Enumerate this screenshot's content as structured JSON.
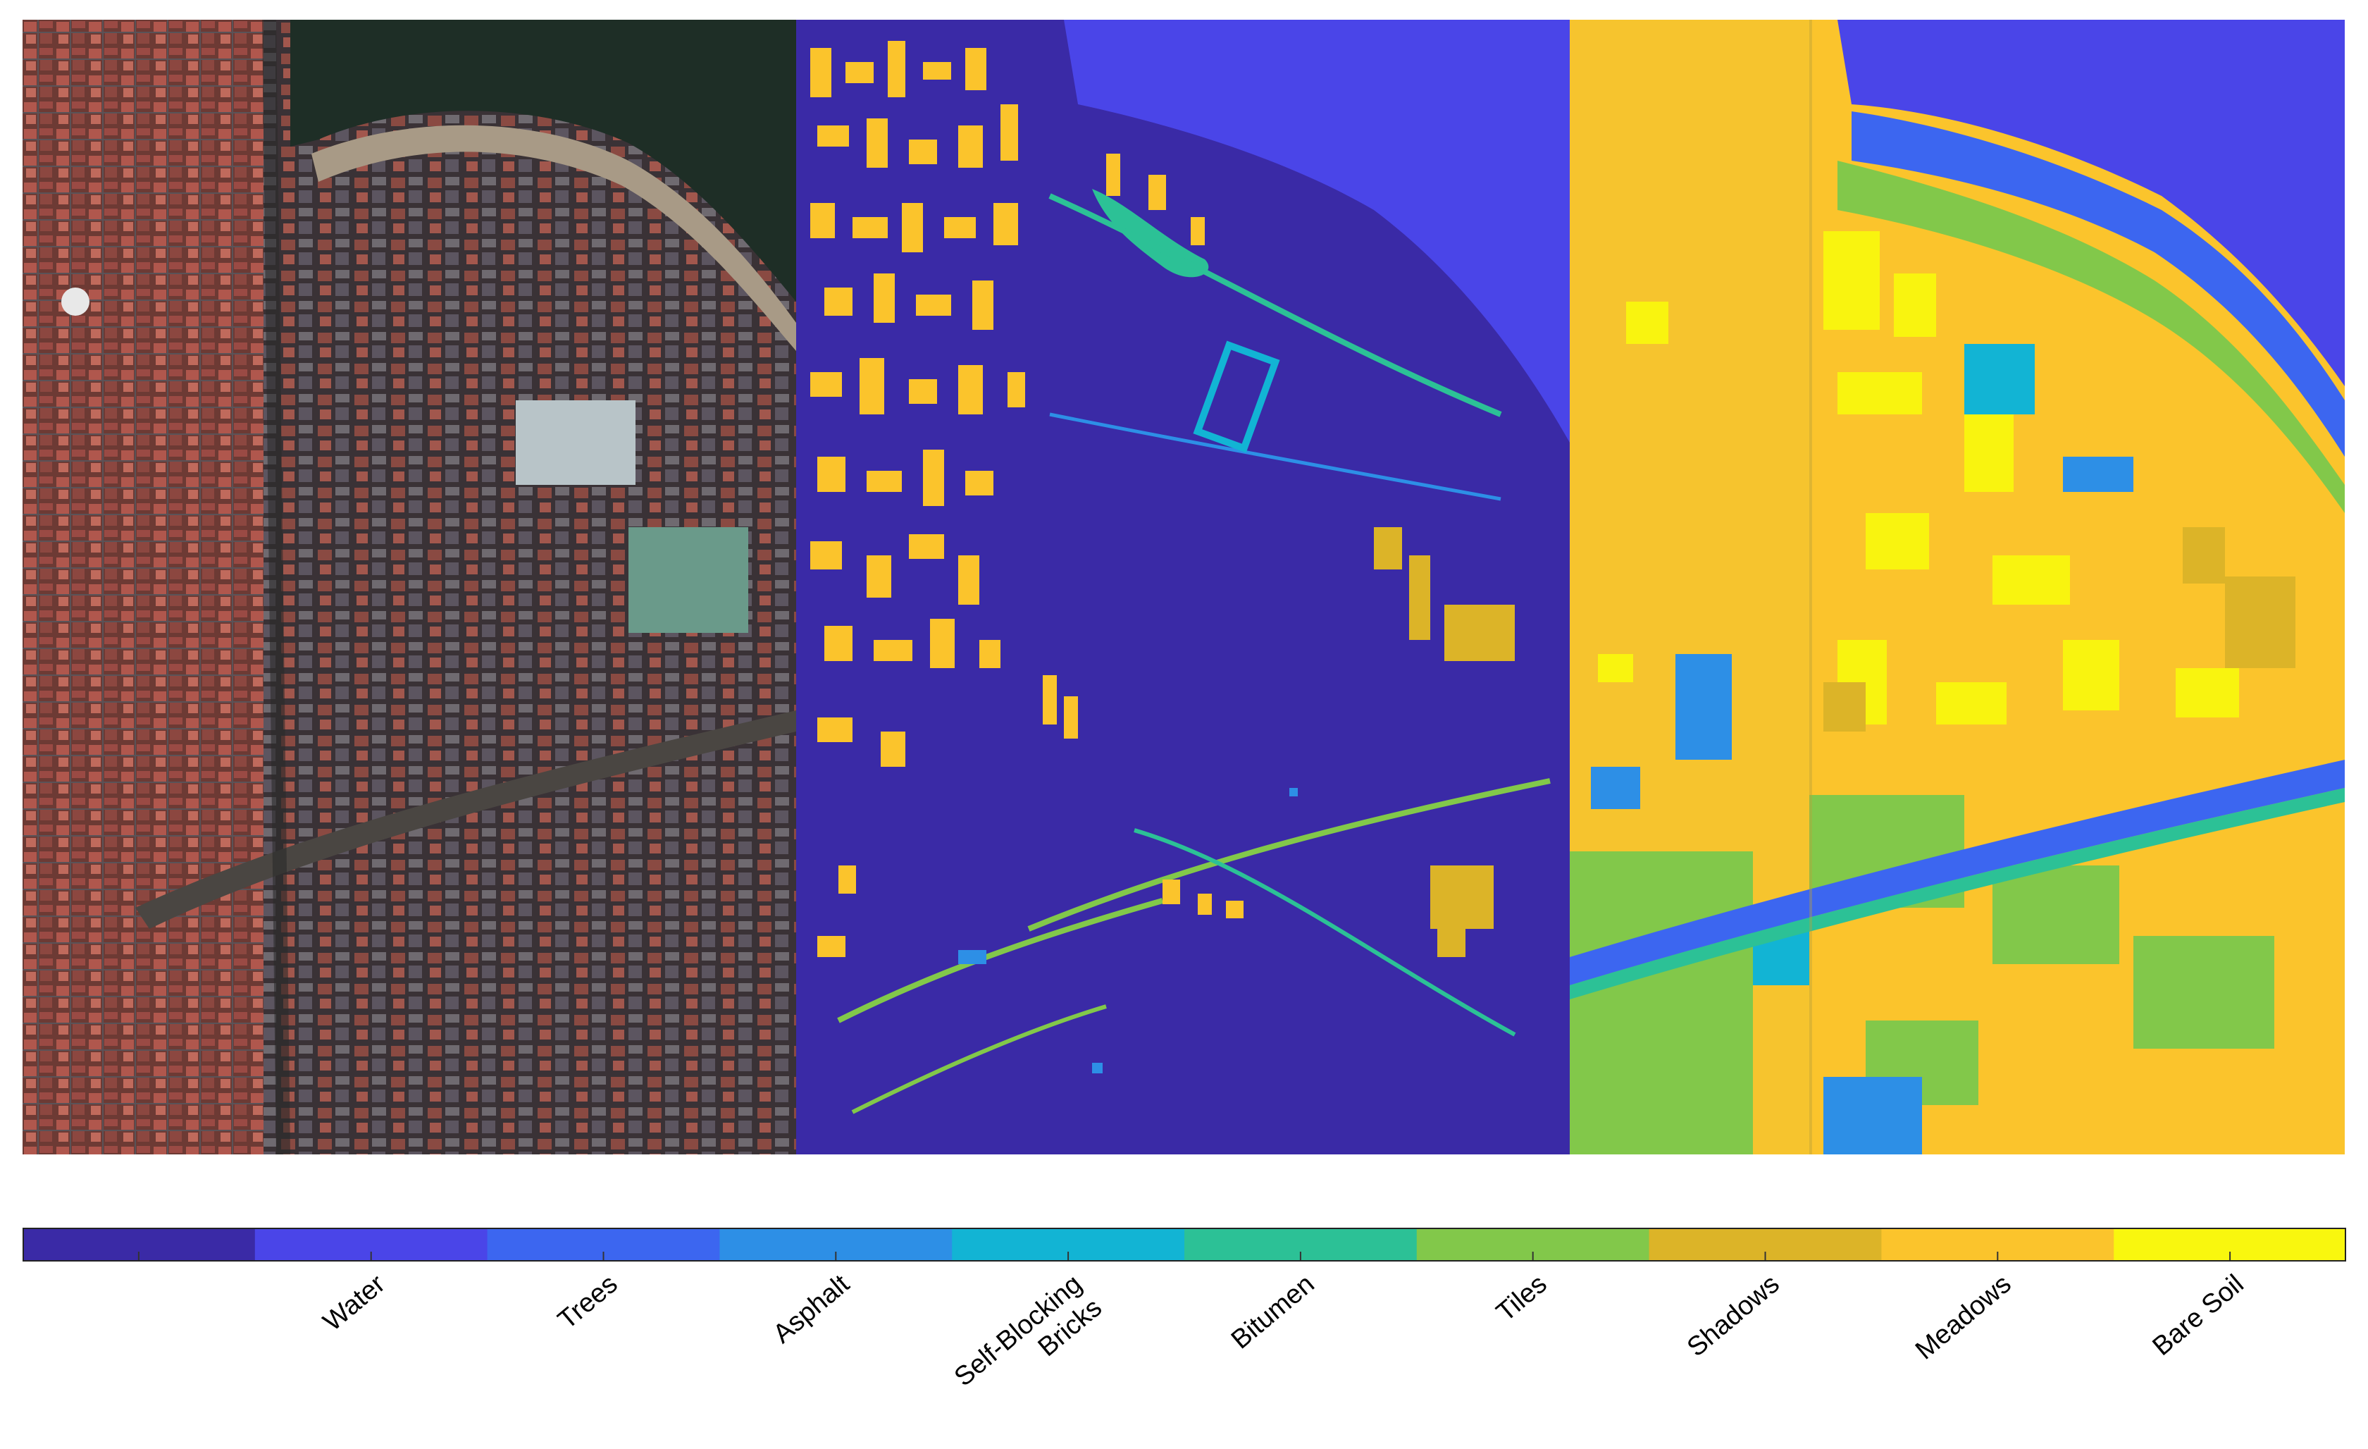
{
  "panels": [
    {
      "name": "rgb-aerial-image"
    },
    {
      "name": "ground-truth-map"
    },
    {
      "name": "classification-map"
    }
  ],
  "legend": {
    "classes": [
      {
        "label": "",
        "color": "#3a2aa6"
      },
      {
        "label": "Water",
        "color": "#4a45e8"
      },
      {
        "label": "Trees",
        "color": "#3c66f0"
      },
      {
        "label": "Asphalt",
        "color": "#2d8fe6"
      },
      {
        "label": "Self-Blocking\nBricks",
        "color": "#12b4d4"
      },
      {
        "label": "Bitumen",
        "color": "#2cc196"
      },
      {
        "label": "Tiles",
        "color": "#82c84a"
      },
      {
        "label": "Shadows",
        "color": "#dcb428"
      },
      {
        "label": "Meadows",
        "color": "#fbc42c"
      },
      {
        "label": "Bare Soil",
        "color": "#f9f70e"
      }
    ]
  }
}
